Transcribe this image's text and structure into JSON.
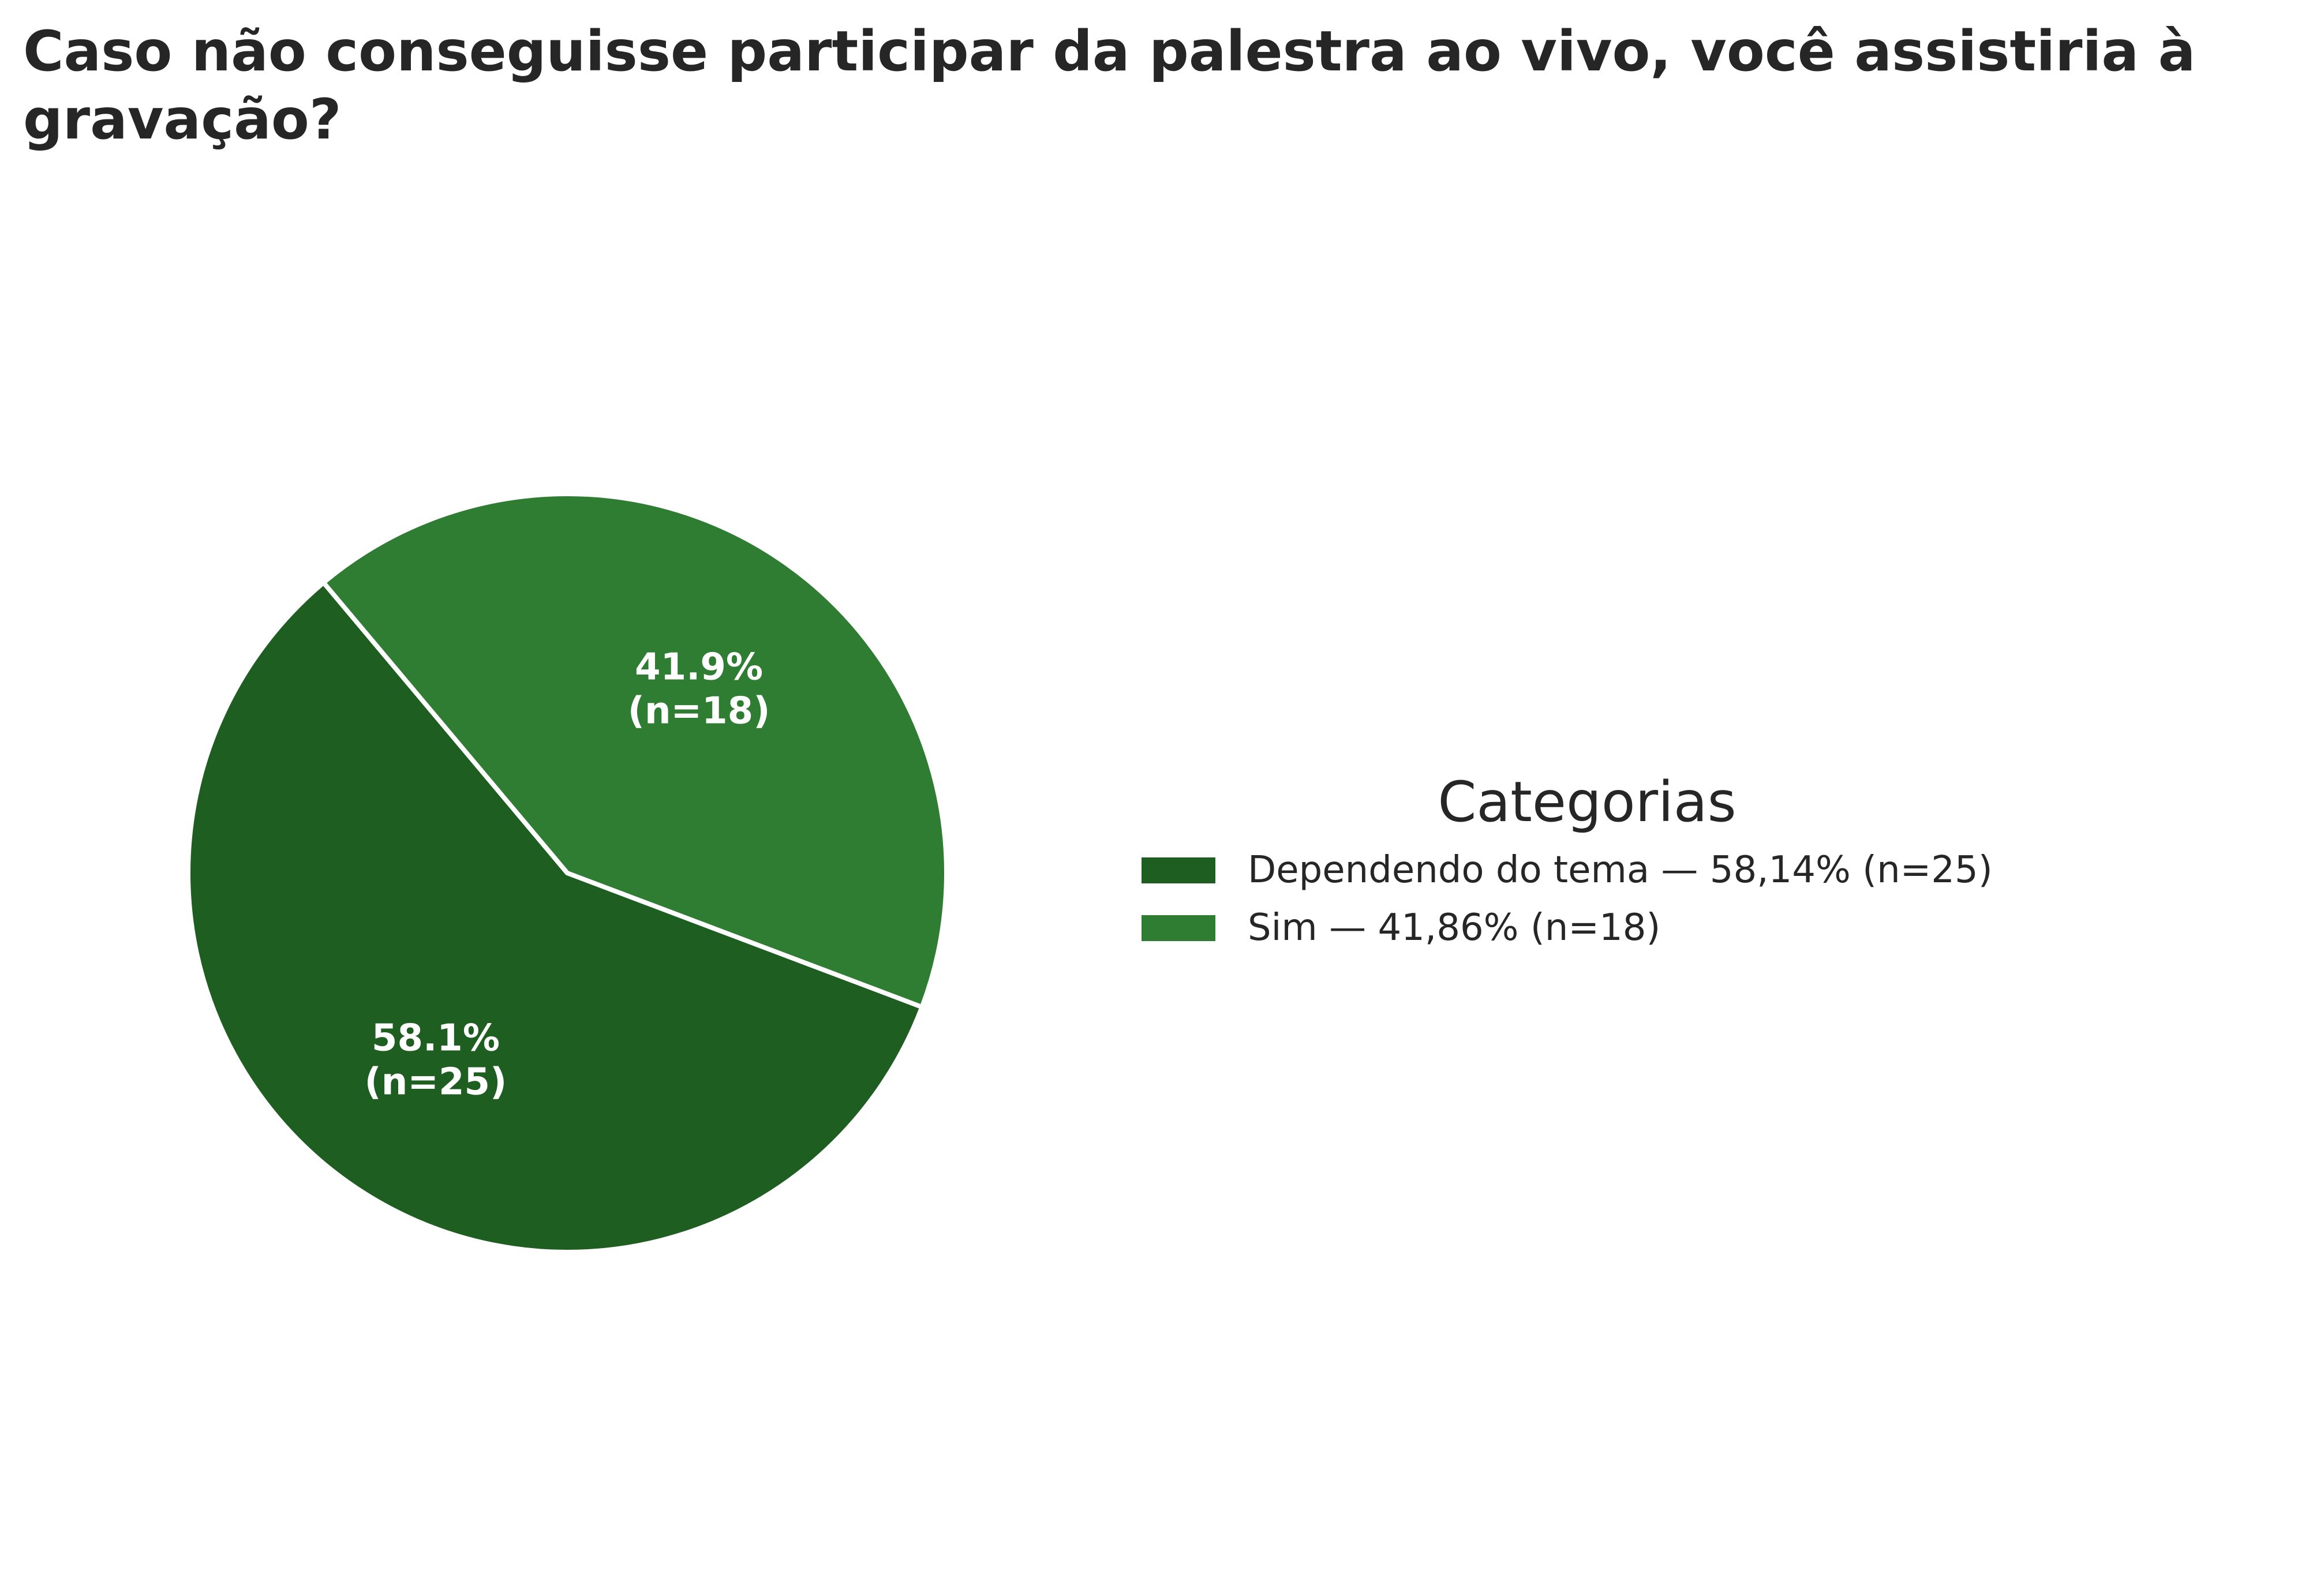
{
  "chart_data": {
    "type": "pie",
    "title": [
      "Caso não conseguisse participar da palestra ao vivo, você assistiria à",
      "gravação?"
    ],
    "slices": [
      {
        "label": "Dependendo do tema",
        "value": 25,
        "percent": 58.14,
        "pct_label": "58.1%",
        "n_label": "(n=25)",
        "legend_label": "Dependendo do tema — 58,14% (n=25)",
        "color": "#1e5e20"
      },
      {
        "label": "Sim",
        "value": 18,
        "percent": 41.86,
        "pct_label": "41.9%",
        "n_label": "(n=18)",
        "legend_label": "Sim — 41,86% (n=18)",
        "color": "#2f7d32"
      }
    ],
    "legend": {
      "title": "Categorias",
      "placement": "right"
    }
  }
}
